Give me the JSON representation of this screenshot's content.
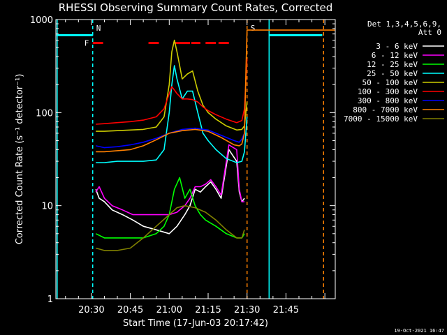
{
  "chart_data": {
    "type": "line",
    "title": "RHESSI Observing Summary Count Rates, Corrected",
    "xlabel": "Start Time (17-Jun-03 20:17:42)",
    "ylabel": "Corrected Count Rate (s⁻¹ detector⁻¹)",
    "y_scale": "log",
    "ylim": [
      1,
      1000
    ],
    "y_ticks": [
      1,
      10,
      100,
      1000
    ],
    "y_tick_labels": [
      "1",
      "10",
      "100",
      "1000"
    ],
    "xlim_minutes": [
      -13.7,
      94
    ],
    "x_ticks": [
      {
        "minute": 0,
        "label": "20:30"
      },
      {
        "minute": 15,
        "label": "20:45"
      },
      {
        "minute": 30,
        "label": "21:00"
      },
      {
        "minute": 45,
        "label": "21:15"
      },
      {
        "minute": 60,
        "label": "21:30"
      },
      {
        "minute": 75,
        "label": "21:45"
      }
    ],
    "legend_header": [
      "Det 1,3,4,5,6,9,",
      "Att 0"
    ],
    "footer_date": "19-Oct-2021 16:47",
    "series": [
      {
        "name": "3 - 6 keV",
        "color": "#ffffff",
        "x": [
          1.7,
          3,
          5,
          8,
          12,
          16,
          20,
          25,
          30,
          33,
          36,
          38,
          40,
          42,
          44,
          46,
          48,
          50,
          53,
          56,
          57,
          58,
          59
        ],
        "y": [
          15,
          12,
          11,
          9,
          8,
          7,
          6,
          5.5,
          5,
          6,
          8,
          10,
          15,
          14,
          16,
          18,
          15,
          12,
          40,
          30,
          14,
          11,
          12
        ]
      },
      {
        "name": "6 - 12 keV",
        "color": "#ff00ff",
        "x": [
          1.7,
          3,
          5,
          8,
          12,
          16,
          20,
          25,
          30,
          33,
          36,
          38,
          40,
          42,
          44,
          46,
          48,
          50,
          53,
          56,
          57,
          58,
          59
        ],
        "y": [
          14,
          16,
          12,
          10,
          9,
          8,
          8,
          8,
          8,
          8.5,
          10,
          12,
          16,
          16,
          17,
          19,
          16,
          13,
          45,
          40,
          15,
          11,
          11
        ]
      },
      {
        "name": "12 - 25 keV",
        "color": "#00ff00",
        "x": [
          1.7,
          5,
          10,
          15,
          20,
          25,
          28,
          30,
          32,
          34,
          36,
          38,
          40,
          42,
          44,
          48,
          52,
          56,
          58,
          59
        ],
        "y": [
          5,
          4.5,
          4.5,
          4.5,
          4.5,
          5,
          6,
          8,
          15,
          20,
          12,
          15,
          10,
          8,
          7,
          6,
          5,
          4.5,
          4.5,
          5
        ]
      },
      {
        "name": "25 - 50 keV",
        "color": "#00ffff",
        "x": [
          1.7,
          5,
          10,
          15,
          20,
          25,
          28,
          30,
          31,
          32,
          33,
          35,
          37,
          39,
          41,
          43,
          45,
          48,
          52,
          56,
          58,
          59,
          60
        ],
        "y": [
          29,
          29,
          30,
          30,
          30,
          31,
          40,
          100,
          200,
          320,
          230,
          140,
          170,
          170,
          100,
          60,
          50,
          40,
          32,
          29,
          30,
          38,
          90
        ]
      },
      {
        "name": "50 - 100 keV",
        "color": "#cccc00",
        "x": [
          1.7,
          5,
          10,
          15,
          20,
          25,
          28,
          30,
          31,
          32,
          33,
          35,
          37,
          39,
          41,
          43,
          45,
          48,
          52,
          56,
          58,
          59,
          60
        ],
        "y": [
          63,
          63,
          64,
          65,
          66,
          70,
          90,
          200,
          450,
          600,
          450,
          230,
          260,
          280,
          170,
          120,
          100,
          85,
          72,
          65,
          66,
          72,
          130
        ]
      },
      {
        "name": "100 - 300 keV",
        "color": "#ff0000",
        "x": [
          1.7,
          5,
          10,
          15,
          20,
          25,
          28,
          30,
          31,
          32,
          33,
          35,
          37,
          39,
          41,
          43,
          45,
          48,
          52,
          56,
          58,
          59,
          60
        ],
        "y": [
          75,
          76,
          78,
          80,
          83,
          90,
          110,
          160,
          190,
          175,
          160,
          140,
          140,
          138,
          130,
          115,
          105,
          95,
          85,
          78,
          82,
          110,
          380
        ]
      },
      {
        "name": "300 - 800 keV",
        "color": "#0000ff",
        "x": [
          1.7,
          5,
          10,
          15,
          20,
          25,
          30,
          35,
          40,
          45,
          50,
          55,
          57,
          58,
          59
        ],
        "y": [
          44,
          42,
          43,
          45,
          48,
          53,
          60,
          66,
          68,
          65,
          57,
          50,
          48,
          52,
          60
        ]
      },
      {
        "name": "800 - 7000 keV",
        "color": "#ff8000",
        "x": [
          1.7,
          5,
          10,
          15,
          20,
          25,
          30,
          35,
          40,
          45,
          50,
          55,
          57,
          58,
          59,
          59.6,
          60,
          94
        ],
        "y": [
          38,
          38,
          39,
          40,
          44,
          51,
          60,
          64,
          66,
          63,
          54,
          45,
          44,
          46,
          60,
          300,
          770,
          770
        ]
      },
      {
        "name": "7000 - 15000 keV",
        "color": "#808000",
        "x": [
          1.7,
          5,
          10,
          15,
          20,
          25,
          30,
          33,
          36,
          40,
          44,
          48,
          52,
          56,
          58,
          59
        ],
        "y": [
          3.5,
          3.3,
          3.3,
          3.5,
          4.5,
          6,
          8,
          9.5,
          10,
          9.5,
          8.5,
          7,
          5.5,
          4.5,
          4.5,
          5.5
        ]
      }
    ],
    "annotations": [
      {
        "type": "vline",
        "x": 0.5,
        "style": "dashed",
        "color": "#00ffff",
        "label": "N"
      },
      {
        "type": "hline",
        "x_from": -13.5,
        "x_to": 0.5,
        "y": 680,
        "color": "#00ffff"
      },
      {
        "type": "vline",
        "x": 60,
        "style": "dashed",
        "color": "#ff8000",
        "label": "S"
      },
      {
        "type": "vline",
        "x": 68.5,
        "style": "solid",
        "color": "#00ffff"
      },
      {
        "type": "hline",
        "x_from": 68.5,
        "x_to": 89,
        "y": 680,
        "color": "#00ffff"
      },
      {
        "type": "vline",
        "x": 89.5,
        "style": "dashed",
        "color": "#ff8000"
      },
      {
        "type": "vline",
        "x": -13.2,
        "style": "solid",
        "color": "#00ffff"
      },
      {
        "type": "flare_segments",
        "label": "F",
        "color": "#ff0000",
        "y": 560,
        "segments": [
          [
            0.5,
            4.5
          ],
          [
            22,
            26
          ],
          [
            32,
            38
          ],
          [
            38.5,
            42
          ],
          [
            44,
            48
          ],
          [
            49,
            53
          ]
        ]
      }
    ]
  }
}
